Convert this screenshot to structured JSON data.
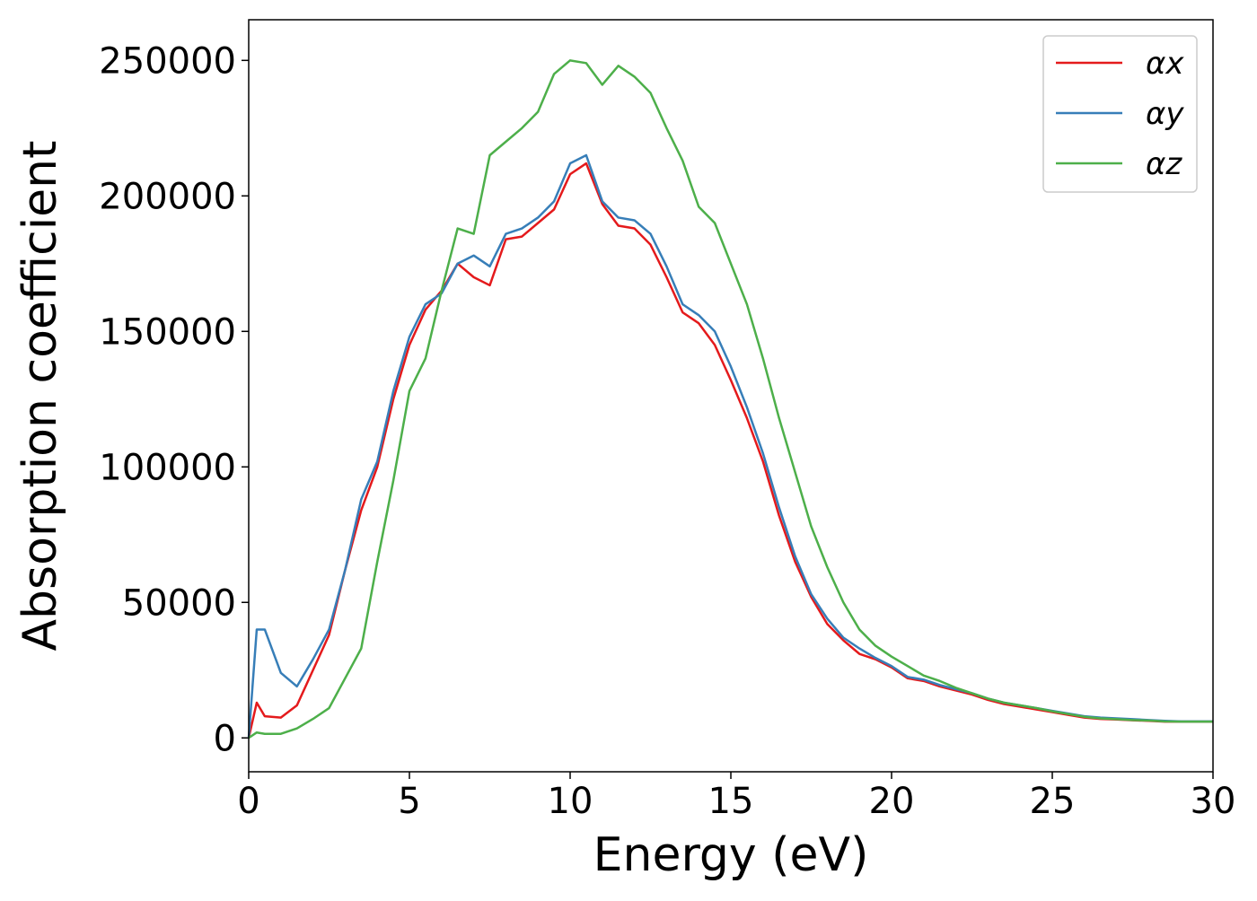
{
  "chart_data": {
    "type": "line",
    "xlabel": "Energy (eV)",
    "ylabel": "Absorption coefficient",
    "x": [
      0,
      0.25,
      0.5,
      1,
      1.5,
      2,
      2.5,
      3,
      3.5,
      4,
      4.5,
      5,
      5.5,
      6,
      6.5,
      7,
      7.5,
      8,
      8.5,
      9,
      9.5,
      10,
      10.5,
      11,
      11.5,
      12,
      12.5,
      13,
      13.5,
      14,
      14.5,
      15,
      15.5,
      16,
      16.5,
      17,
      17.5,
      18,
      18.5,
      19,
      19.5,
      20,
      20.5,
      21,
      21.5,
      22,
      22.5,
      23,
      23.5,
      24,
      24.5,
      25,
      25.5,
      26,
      26.5,
      27,
      27.5,
      28,
      28.5,
      29,
      29.5,
      30
    ],
    "series": [
      {
        "name": "αx",
        "color": "#e41a1c",
        "values": [
          0,
          13000,
          8000,
          7500,
          12000,
          25000,
          38000,
          62000,
          84000,
          100000,
          125000,
          145000,
          158000,
          165000,
          175000,
          170000,
          167000,
          184000,
          185000,
          190000,
          195000,
          208000,
          212000,
          197000,
          189000,
          188000,
          182000,
          170000,
          157000,
          153000,
          145000,
          132000,
          118000,
          102000,
          82000,
          65000,
          52000,
          42000,
          36000,
          31000,
          29000,
          26000,
          22000,
          21000,
          19000,
          17500,
          16000,
          14000,
          12500,
          11500,
          10500,
          9500,
          8500,
          7500,
          7000,
          6800,
          6500,
          6300,
          6000,
          6000,
          6000,
          6000
        ]
      },
      {
        "name": "αy",
        "color": "#377eb8",
        "values": [
          0,
          40000,
          40000,
          24000,
          19000,
          29000,
          40000,
          62000,
          88000,
          102000,
          128000,
          148000,
          160000,
          164000,
          175000,
          178000,
          174000,
          186000,
          188000,
          192000,
          198000,
          212000,
          215000,
          198000,
          192000,
          191000,
          186000,
          174000,
          160000,
          156000,
          150000,
          137000,
          122000,
          105000,
          85000,
          67000,
          53000,
          44000,
          37000,
          33000,
          29500,
          26500,
          22500,
          21500,
          19500,
          18000,
          16500,
          14500,
          13000,
          12000,
          11000,
          10000,
          9000,
          8000,
          7500,
          7200,
          6900,
          6600,
          6300,
          6100,
          6100,
          6100
        ]
      },
      {
        "name": "αz",
        "color": "#4daf4a",
        "values": [
          0,
          2000,
          1500,
          1500,
          3500,
          7000,
          11000,
          22000,
          33000,
          65000,
          95000,
          128000,
          140000,
          165000,
          188000,
          186000,
          215000,
          220000,
          225000,
          231000,
          245000,
          250000,
          249000,
          241000,
          248000,
          244000,
          238000,
          225000,
          213000,
          196000,
          190000,
          175000,
          160000,
          140000,
          118000,
          98000,
          78000,
          63000,
          50000,
          40000,
          34000,
          30000,
          26500,
          23000,
          21000,
          18500,
          16500,
          14500,
          13000,
          12000,
          11000,
          9800,
          8800,
          7800,
          7200,
          6900,
          6600,
          6400,
          6100,
          6000,
          6000,
          6000
        ]
      }
    ],
    "xlim": [
      0,
      30
    ],
    "xticks": [
      0,
      5,
      10,
      15,
      20,
      25,
      30
    ],
    "ylim": [
      -12500,
      265000
    ],
    "yticks": [
      0,
      50000,
      100000,
      150000,
      200000,
      250000
    ],
    "legend": "upper right",
    "grid": false
  }
}
